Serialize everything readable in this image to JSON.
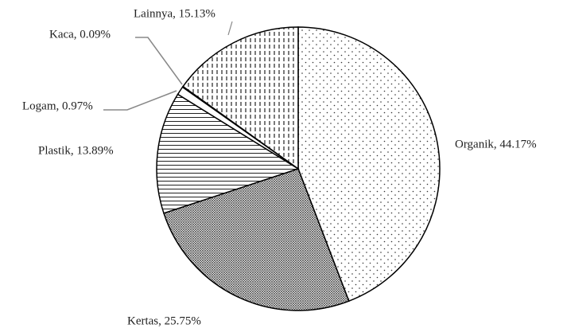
{
  "chart_data": {
    "type": "pie",
    "values": [
      44.17,
      25.75,
      13.89,
      0.97,
      0.09,
      15.13
    ],
    "value_labels": [
      "Organik, 44.17%",
      "Kertas, 25.75%",
      "Plastik, 13.89%",
      "Logam, 0.97%",
      "Kaca, 0.09%",
      "Lainnya, 15.13%"
    ]
  }
}
